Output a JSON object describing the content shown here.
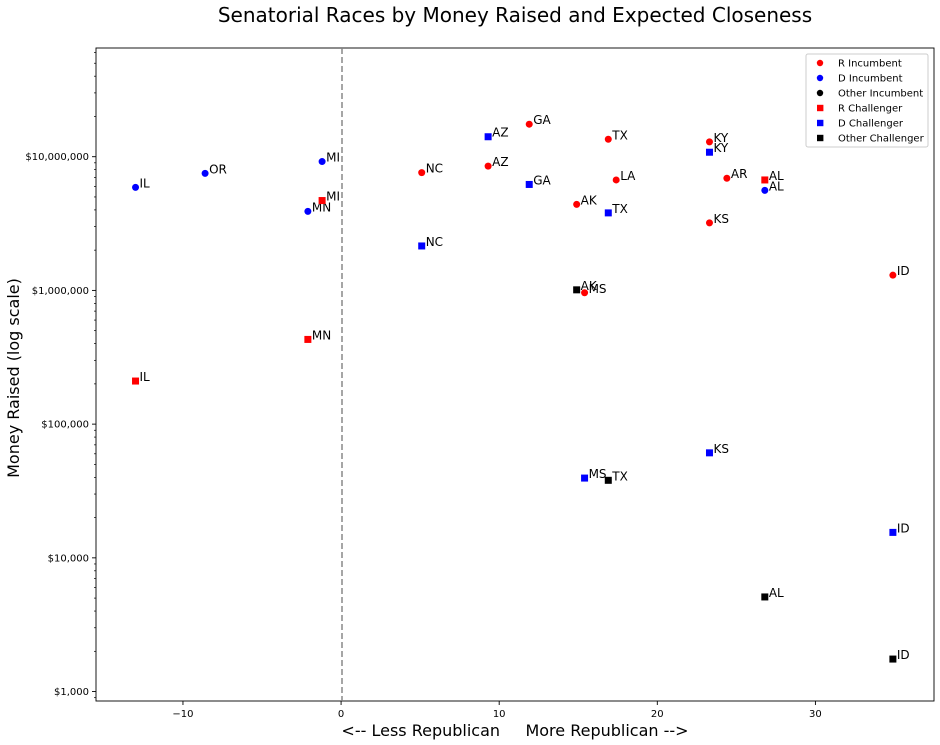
{
  "chart_data": {
    "type": "scatter",
    "title": "Senatorial Races by Money Raised and Expected Closeness",
    "xlabel": "<-- Less Republican     More Republican -->",
    "ylabel": "Money Raised (log scale)",
    "xlim": [
      -15.5,
      37.5
    ],
    "ylim": [
      850,
      65000000
    ],
    "y_scale": "log",
    "reference_line_x": 0,
    "x_ticks": [
      -10,
      0,
      10,
      20,
      30
    ],
    "x_tick_labels": [
      "−10",
      "0",
      "10",
      "20",
      "30"
    ],
    "y_ticks": [
      1000,
      10000,
      100000,
      1000000,
      10000000
    ],
    "y_tick_labels": [
      "$1,000",
      "$10,000",
      "$100,000",
      "$1,000,000",
      "$10,000,000"
    ],
    "legend_position": "top-right",
    "series": [
      {
        "name": "R Incumbent",
        "color": "#ff0000",
        "marker": "circle",
        "points": [
          {
            "x": 11.9,
            "y": 17500000,
            "label": "GA"
          },
          {
            "x": 16.9,
            "y": 13500000,
            "label": "TX"
          },
          {
            "x": 23.3,
            "y": 12900000,
            "label": "KY"
          },
          {
            "x": 9.3,
            "y": 8500000,
            "label": "AZ"
          },
          {
            "x": 5.1,
            "y": 7600000,
            "label": "NC"
          },
          {
            "x": 17.4,
            "y": 6700000,
            "label": "LA"
          },
          {
            "x": 24.4,
            "y": 6900000,
            "label": "AR"
          },
          {
            "x": 14.9,
            "y": 4400000,
            "label": "AK"
          },
          {
            "x": 23.3,
            "y": 3200000,
            "label": "KS"
          },
          {
            "x": 34.9,
            "y": 1300000,
            "label": "ID"
          },
          {
            "x": 15.4,
            "y": 960000,
            "label": "MS"
          }
        ]
      },
      {
        "name": "D Incumbent",
        "color": "#0000ff",
        "marker": "circle",
        "points": [
          {
            "x": -1.2,
            "y": 9200000,
            "label": "MI"
          },
          {
            "x": -8.6,
            "y": 7500000,
            "label": "OR"
          },
          {
            "x": -13.0,
            "y": 5900000,
            "label": "IL"
          },
          {
            "x": -2.1,
            "y": 3900000,
            "label": "MN"
          },
          {
            "x": 26.8,
            "y": 5600000,
            "label": "AL"
          }
        ]
      },
      {
        "name": "Other Incumbent",
        "color": "#000000",
        "marker": "circle",
        "points": []
      },
      {
        "name": "R Challenger",
        "color": "#ff0000",
        "marker": "square",
        "points": [
          {
            "x": 26.8,
            "y": 6700000,
            "label": "AL"
          },
          {
            "x": -1.2,
            "y": 4700000,
            "label": "MI"
          },
          {
            "x": -2.1,
            "y": 430000,
            "label": "MN"
          },
          {
            "x": -13.0,
            "y": 210000,
            "label": "IL"
          }
        ]
      },
      {
        "name": "D Challenger",
        "color": "#0000ff",
        "marker": "square",
        "points": [
          {
            "x": 9.3,
            "y": 14100000,
            "label": "AZ"
          },
          {
            "x": 23.3,
            "y": 10800000,
            "label": "KY"
          },
          {
            "x": 11.9,
            "y": 6200000,
            "label": "GA"
          },
          {
            "x": 16.9,
            "y": 3800000,
            "label": "TX"
          },
          {
            "x": 5.1,
            "y": 2150000,
            "label": "NC"
          },
          {
            "x": 23.3,
            "y": 61000,
            "label": "KS"
          },
          {
            "x": 15.4,
            "y": 39500,
            "label": "MS"
          },
          {
            "x": 34.9,
            "y": 15500,
            "label": "ID"
          }
        ]
      },
      {
        "name": "Other Challenger",
        "color": "#000000",
        "marker": "square",
        "points": [
          {
            "x": 14.9,
            "y": 1010000,
            "label": "AK"
          },
          {
            "x": 16.9,
            "y": 38000,
            "label": "TX"
          },
          {
            "x": 26.8,
            "y": 5100,
            "label": "AL"
          },
          {
            "x": 34.9,
            "y": 1750,
            "label": "ID"
          }
        ]
      }
    ]
  }
}
